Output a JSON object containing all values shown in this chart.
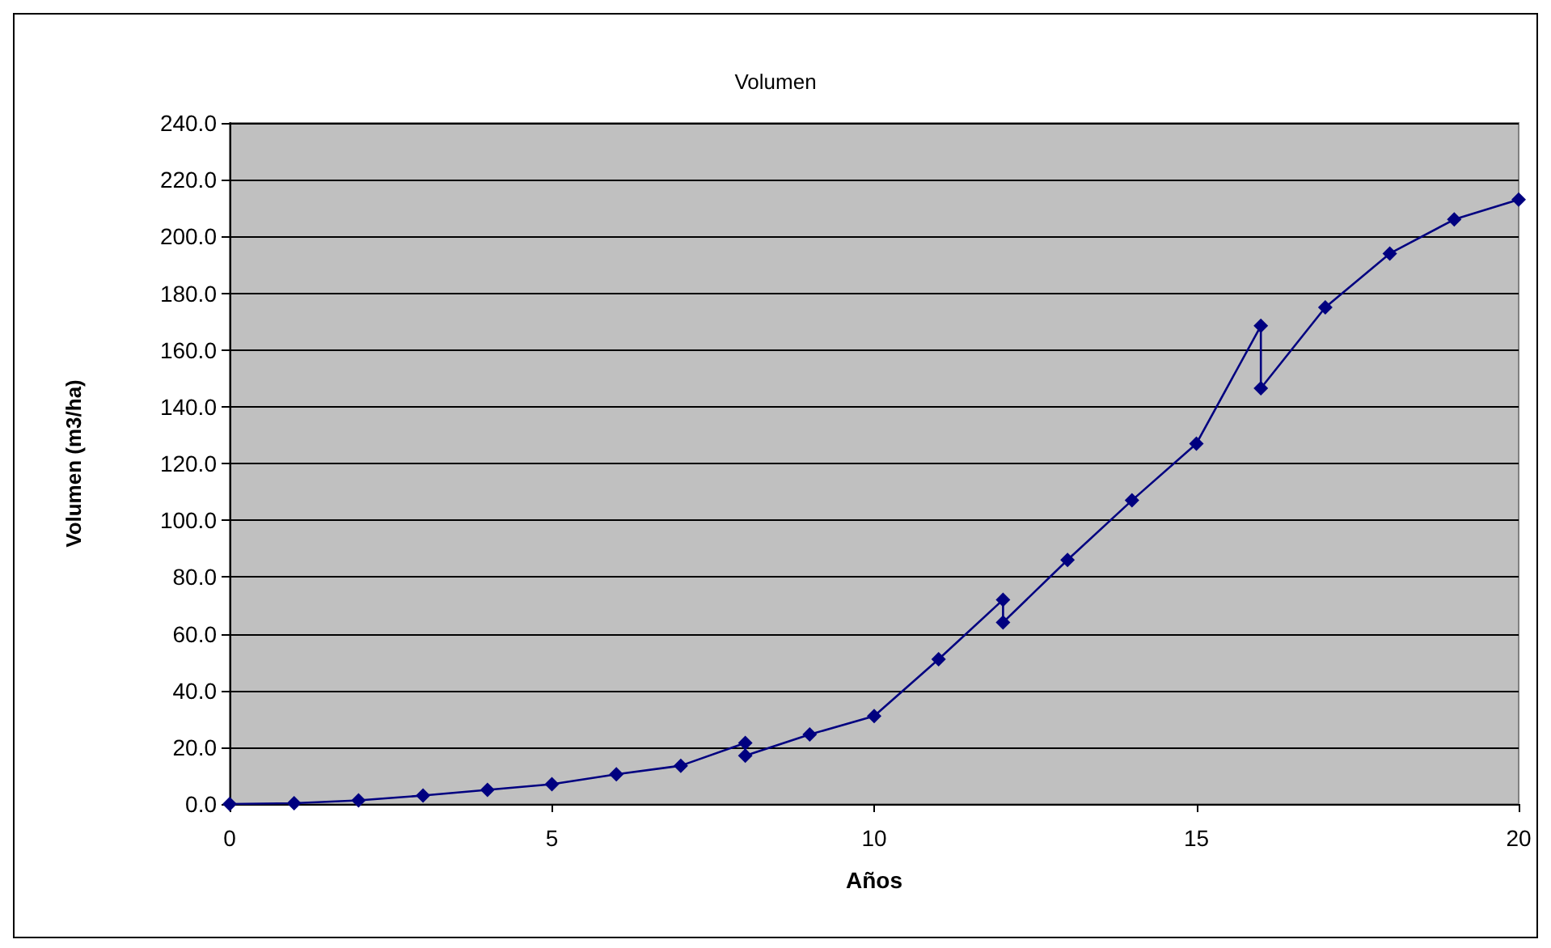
{
  "chart_data": {
    "type": "line",
    "title": "Volumen",
    "xlabel": "Años",
    "ylabel": "Volumen (m3/ha)",
    "x": [
      0,
      1,
      2,
      3,
      4,
      5,
      6,
      7,
      8,
      8,
      9,
      10,
      11,
      12,
      12,
      13,
      14,
      15,
      16,
      16,
      17,
      18,
      19,
      20
    ],
    "series": [
      {
        "color": "#000080",
        "values": [
          0,
          0.3,
          1.3,
          3,
          5,
          7,
          10.5,
          13.5,
          21.5,
          17,
          24.5,
          31,
          51,
          72,
          64,
          86,
          107,
          127,
          168.5,
          146.5,
          175,
          194,
          206,
          213
        ]
      }
    ],
    "xlim": [
      0,
      20
    ],
    "xticks": [
      0,
      5,
      10,
      15,
      20
    ],
    "ylim": [
      0,
      240
    ],
    "yticks": [
      {
        "value": 0,
        "label": "0.0"
      },
      {
        "value": 20,
        "label": "20.0"
      },
      {
        "value": 40,
        "label": "40.0"
      },
      {
        "value": 60,
        "label": "60.0"
      },
      {
        "value": 80,
        "label": "80.0"
      },
      {
        "value": 100,
        "label": "100.0"
      },
      {
        "value": 120,
        "label": "120.0"
      },
      {
        "value": 140,
        "label": "140.0"
      },
      {
        "value": 160,
        "label": "160.0"
      },
      {
        "value": 180,
        "label": "180.0"
      },
      {
        "value": 200,
        "label": "200.0"
      },
      {
        "value": 220,
        "label": "220.0"
      },
      {
        "value": 240,
        "label": "240.0"
      }
    ],
    "grid": "y",
    "marker": "diamond",
    "line_style": "solid"
  }
}
